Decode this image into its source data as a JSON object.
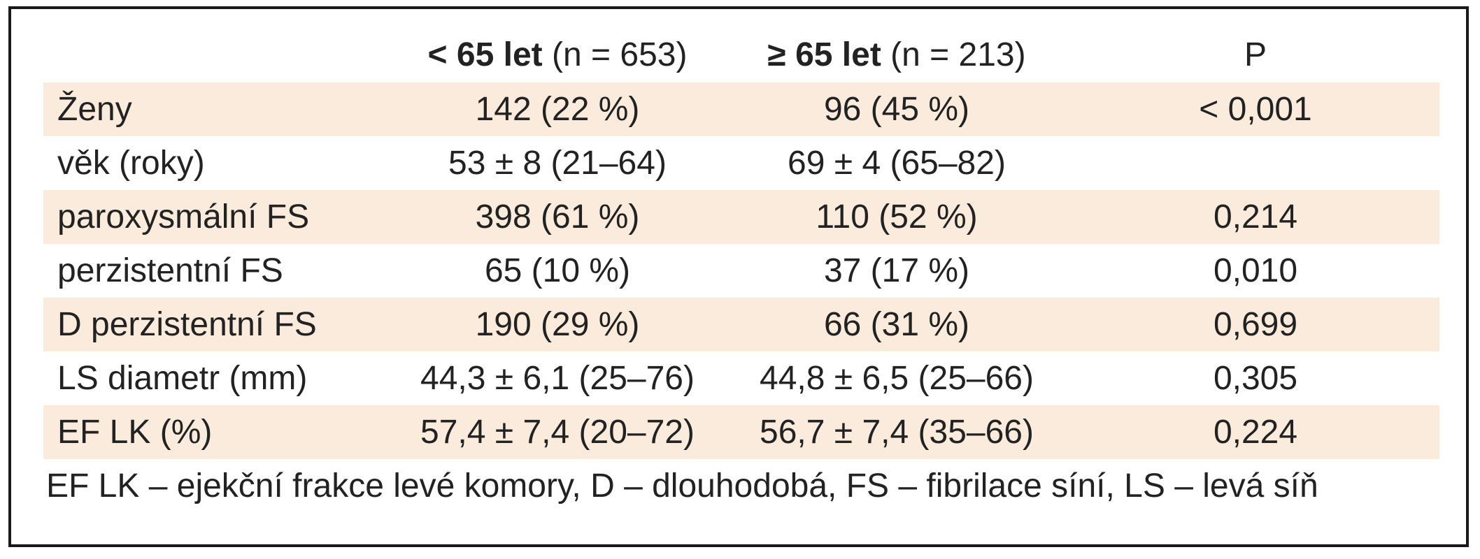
{
  "header": {
    "col1_bold": "< 65 let",
    "col1_rest": " (n = 653)",
    "col2_bold": "≥ 65 let",
    "col2_rest": " (n = 213)",
    "col3": "P"
  },
  "rows": [
    {
      "label": "Ženy",
      "young": "142 (22 %)",
      "old": "96 (45 %)",
      "p": "< 0,001"
    },
    {
      "label": "věk (roky)",
      "young": "53 ± 8 (21–64)",
      "old": "69 ± 4 (65–82)",
      "p": ""
    },
    {
      "label": "paroxysmální FS",
      "young": "398 (61 %)",
      "old": "110 (52 %)",
      "p": "0,214"
    },
    {
      "label": "perzistentní FS",
      "young": "65 (10 %)",
      "old": "37 (17 %)",
      "p": "0,010"
    },
    {
      "label": "D perzistentní FS",
      "young": "190 (29 %)",
      "old": "66 (31 %)",
      "p": "0,699"
    },
    {
      "label": "LS diametr (mm)",
      "young": "44,3 ± 6,1 (25–76)",
      "old": "44,8 ± 6,5 (25–66)",
      "p": "0,305"
    },
    {
      "label": "EF LK (%)",
      "young": "57,4 ± 7,4 (20–72)",
      "old": "56,7 ± 7,4 (35–66)",
      "p": "0,224"
    }
  ],
  "footnote": "EF LK – ejekční frakce levé komory, D – dlouhodobá, FS – fibrilace síní, LS – levá síň",
  "colors": {
    "shaded_row": "#fbebdd",
    "border": "#1a1a1a"
  }
}
